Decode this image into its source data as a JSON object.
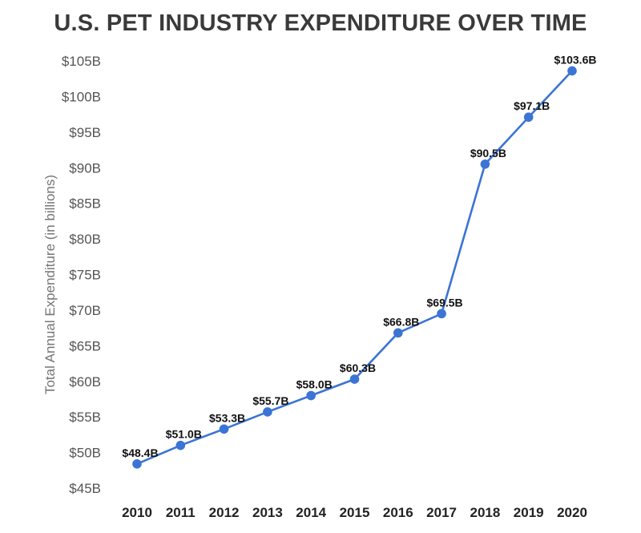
{
  "chart_data": {
    "type": "line",
    "title": "U.S. PET INDUSTRY EXPENDITURE OVER TIME",
    "xlabel": "",
    "ylabel": "Total Annual Expenditure (in billions)",
    "categories": [
      "2010",
      "2011",
      "2012",
      "2013",
      "2014",
      "2015",
      "2016",
      "2017",
      "2018",
      "2019",
      "2020"
    ],
    "series": [
      {
        "name": "Total Annual Expenditure",
        "values": [
          48.4,
          51.0,
          53.3,
          55.7,
          58.0,
          60.3,
          66.8,
          69.5,
          90.5,
          97.1,
          103.6
        ],
        "labels": [
          "$48.4B",
          "$51.0B",
          "$53.3B",
          "$55.7B",
          "$58.0B",
          "$60.3B",
          "$66.8B",
          "$69.5B",
          "$90.5B",
          "$97.1B",
          "$103.6B"
        ]
      }
    ],
    "ylim": [
      45,
      105
    ],
    "yticks": [
      45,
      50,
      55,
      60,
      65,
      70,
      75,
      80,
      85,
      90,
      95,
      100,
      105
    ],
    "ytick_labels": [
      "$45B",
      "$50B",
      "$55B",
      "$60B",
      "$65B",
      "$70B",
      "$75B",
      "$80B",
      "$85B",
      "$90B",
      "$95B",
      "$100B",
      "$105B"
    ],
    "grid": false,
    "legend": "none",
    "colors": {
      "line": "#3b74d4",
      "marker": "#3b74d4",
      "title": "#3a3a3a"
    }
  }
}
